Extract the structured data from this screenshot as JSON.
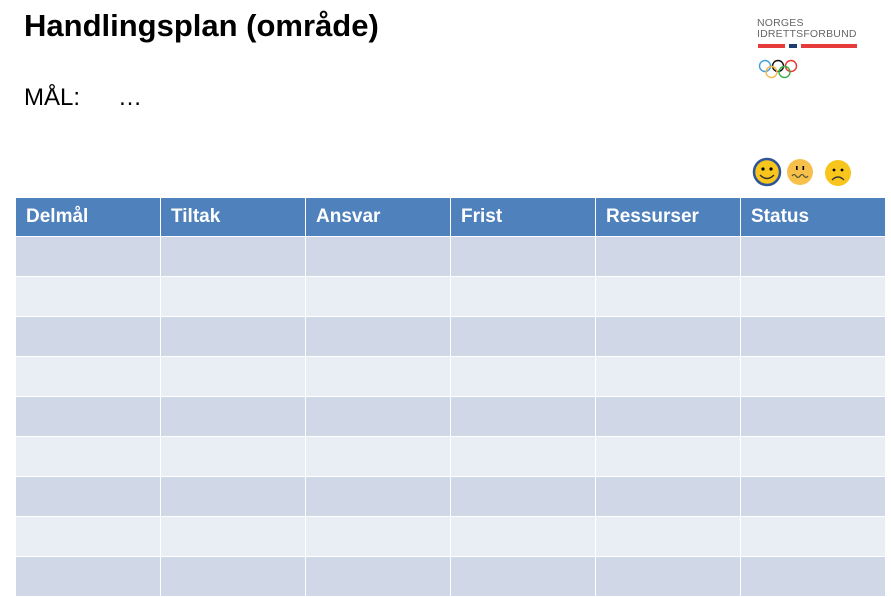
{
  "title": "Handlingsplan (område)",
  "goal": {
    "label": "MÅL:",
    "value": "…"
  },
  "logo": {
    "line1": "NORGES",
    "line2": "IDRETTSFORBUND"
  },
  "status_icons": [
    "happy-smiley-icon",
    "worried-smiley-icon",
    "sad-smiley-icon"
  ],
  "table": {
    "headers": [
      "Delmål",
      "Tiltak",
      "Ansvar",
      "Frist",
      "Ressurser",
      "Status"
    ],
    "row_count": 9
  },
  "colors": {
    "header": "#4f81bd",
    "row_odd": "#d0d8e8",
    "row_even": "#e9edf4"
  }
}
